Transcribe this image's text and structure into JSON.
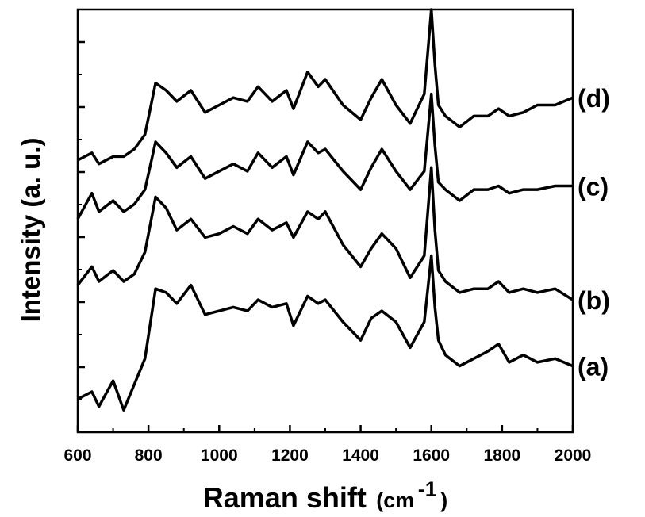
{
  "chart_data": {
    "type": "line",
    "xlabel": "Raman shift",
    "xlabel_unit": "(cm",
    "xlabel_exp": "-1",
    "xlabel_close": ")",
    "ylabel": "Intensity (a. u.)",
    "xlim": [
      600,
      2000
    ],
    "ylim": [
      0,
      10
    ],
    "x_ticks": [
      600,
      800,
      1000,
      1200,
      1400,
      1600,
      1800,
      2000
    ],
    "x_tick_labels": [
      "600",
      "800",
      "1000",
      "1200",
      "1400",
      "1600",
      "1800",
      "2000"
    ],
    "y_tick_labels_shown": false,
    "grid": false,
    "legend": "none",
    "line_color": "#000000",
    "x": [
      600,
      640,
      660,
      700,
      730,
      760,
      790,
      820,
      850,
      880,
      920,
      960,
      1000,
      1040,
      1080,
      1110,
      1150,
      1190,
      1210,
      1250,
      1280,
      1300,
      1350,
      1400,
      1430,
      1460,
      1500,
      1540,
      1580,
      1600,
      1610,
      1620,
      1640,
      1680,
      1720,
      1760,
      1790,
      1820,
      1860,
      1900,
      1950,
      2000
    ],
    "series": [
      {
        "name": "(a)",
        "values": [
          0.9,
          1.1,
          0.7,
          1.4,
          0.6,
          1.3,
          2.0,
          3.9,
          3.8,
          3.5,
          4.0,
          3.2,
          3.3,
          3.4,
          3.3,
          3.6,
          3.4,
          3.5,
          2.9,
          3.7,
          3.5,
          3.6,
          3.0,
          2.5,
          3.1,
          3.3,
          3.0,
          2.3,
          3.0,
          4.8,
          3.4,
          2.5,
          2.1,
          1.8,
          2.0,
          2.2,
          2.4,
          1.9,
          2.1,
          1.9,
          2.0,
          1.8
        ]
      },
      {
        "name": "(b)",
        "values": [
          4.0,
          4.5,
          4.1,
          4.4,
          4.1,
          4.3,
          4.9,
          6.4,
          6.1,
          5.5,
          5.8,
          5.3,
          5.4,
          5.6,
          5.4,
          5.8,
          5.5,
          5.7,
          5.3,
          6.0,
          5.8,
          6.0,
          5.1,
          4.5,
          5.0,
          5.4,
          5.0,
          4.2,
          4.8,
          7.2,
          5.5,
          4.4,
          4.1,
          3.8,
          3.9,
          3.9,
          4.1,
          3.8,
          3.9,
          3.8,
          3.9,
          3.6
        ]
      },
      {
        "name": "(c)",
        "values": [
          5.8,
          6.5,
          6.0,
          6.3,
          6.0,
          6.2,
          6.6,
          7.9,
          7.6,
          7.2,
          7.5,
          6.9,
          7.1,
          7.3,
          7.1,
          7.6,
          7.2,
          7.5,
          7.0,
          7.9,
          7.6,
          7.7,
          7.1,
          6.6,
          7.2,
          7.7,
          7.1,
          6.6,
          7.1,
          9.2,
          7.8,
          6.8,
          6.6,
          6.3,
          6.6,
          6.6,
          6.7,
          6.5,
          6.6,
          6.6,
          6.7,
          6.7
        ]
      },
      {
        "name": "(d)",
        "values": [
          7.4,
          7.6,
          7.3,
          7.5,
          7.5,
          7.7,
          8.1,
          9.5,
          9.3,
          9.0,
          9.3,
          8.7,
          8.9,
          9.1,
          9.0,
          9.4,
          9.0,
          9.3,
          8.8,
          9.8,
          9.4,
          9.6,
          8.9,
          8.5,
          9.1,
          9.6,
          8.9,
          8.4,
          9.2,
          11.5,
          10.0,
          8.9,
          8.6,
          8.3,
          8.6,
          8.6,
          8.8,
          8.6,
          8.7,
          8.9,
          8.9,
          9.1
        ]
      }
    ]
  }
}
